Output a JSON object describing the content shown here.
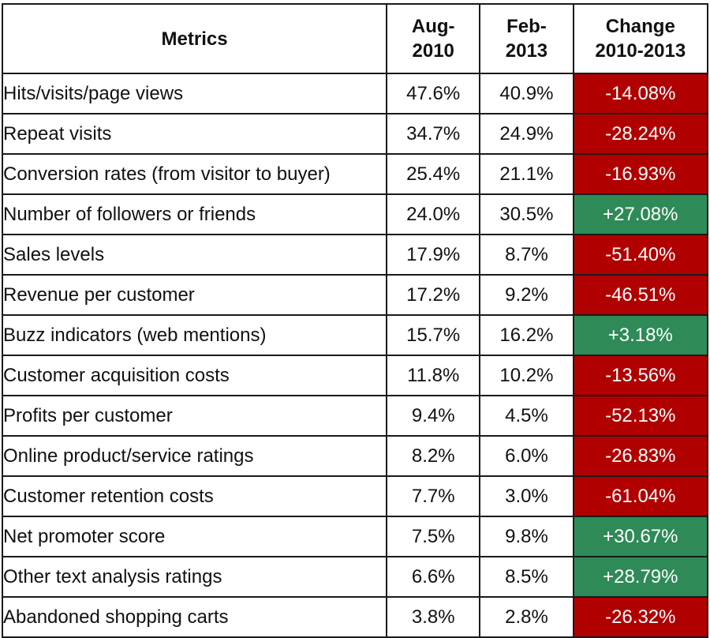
{
  "colors": {
    "negative": "#b00000",
    "positive": "#2e8b57",
    "border": "#1a1a1a"
  },
  "chart_data": {
    "type": "table",
    "columns": [
      {
        "lines": [
          "Metrics"
        ]
      },
      {
        "lines": [
          "Aug-",
          "2010"
        ]
      },
      {
        "lines": [
          "Feb-",
          "2013"
        ]
      },
      {
        "lines": [
          "Change",
          "2010-2013"
        ]
      }
    ],
    "rows": [
      {
        "metric": "Hits/visits/page views",
        "aug_2010": "47.6%",
        "feb_2013": "40.9%",
        "change": "-14.08%",
        "direction": "negative"
      },
      {
        "metric": "Repeat visits",
        "aug_2010": "34.7%",
        "feb_2013": "24.9%",
        "change": "-28.24%",
        "direction": "negative"
      },
      {
        "metric": "Conversion rates (from visitor to buyer)",
        "aug_2010": "25.4%",
        "feb_2013": "21.1%",
        "change": "-16.93%",
        "direction": "negative"
      },
      {
        "metric": "Number of followers or friends",
        "aug_2010": "24.0%",
        "feb_2013": "30.5%",
        "change": "+27.08%",
        "direction": "positive"
      },
      {
        "metric": "Sales levels",
        "aug_2010": "17.9%",
        "feb_2013": "8.7%",
        "change": "-51.40%",
        "direction": "negative"
      },
      {
        "metric": "Revenue per customer",
        "aug_2010": "17.2%",
        "feb_2013": "9.2%",
        "change": "-46.51%",
        "direction": "negative"
      },
      {
        "metric": "Buzz indicators (web mentions)",
        "aug_2010": "15.7%",
        "feb_2013": "16.2%",
        "change": "+3.18%",
        "direction": "positive"
      },
      {
        "metric": "Customer acquisition costs",
        "aug_2010": "11.8%",
        "feb_2013": "10.2%",
        "change": "-13.56%",
        "direction": "negative"
      },
      {
        "metric": "Profits per customer",
        "aug_2010": "9.4%",
        "feb_2013": "4.5%",
        "change": "-52.13%",
        "direction": "negative"
      },
      {
        "metric": "Online product/service ratings",
        "aug_2010": "8.2%",
        "feb_2013": "6.0%",
        "change": "-26.83%",
        "direction": "negative"
      },
      {
        "metric": "Customer retention costs",
        "aug_2010": "7.7%",
        "feb_2013": "3.0%",
        "change": "-61.04%",
        "direction": "negative"
      },
      {
        "metric": "Net promoter score",
        "aug_2010": "7.5%",
        "feb_2013": "9.8%",
        "change": "+30.67%",
        "direction": "positive"
      },
      {
        "metric": "Other text analysis ratings",
        "aug_2010": "6.6%",
        "feb_2013": "8.5%",
        "change": "+28.79%",
        "direction": "positive"
      },
      {
        "metric": "Abandoned shopping carts",
        "aug_2010": "3.8%",
        "feb_2013": "2.8%",
        "change": "-26.32%",
        "direction": "negative"
      }
    ]
  }
}
